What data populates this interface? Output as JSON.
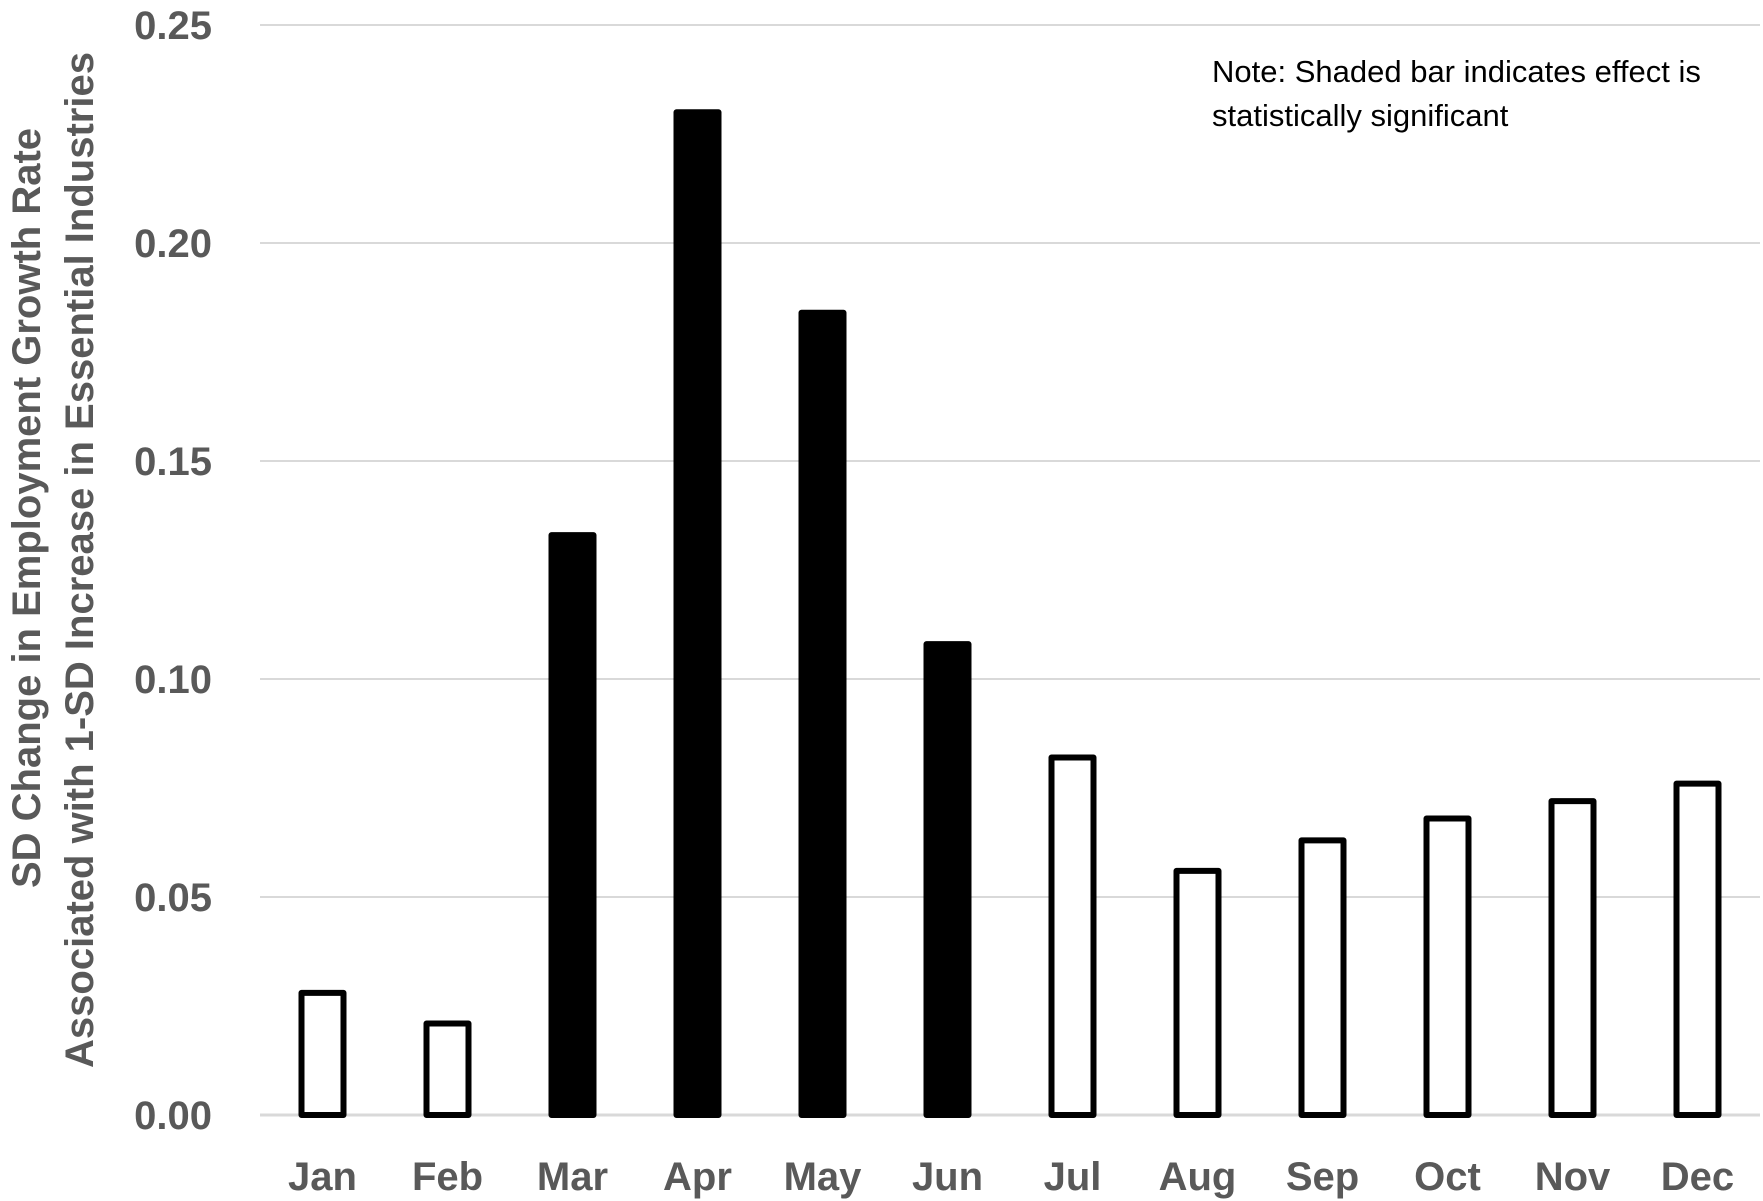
{
  "chart_data": {
    "type": "bar",
    "title": "",
    "xlabel": "",
    "ylabel_lines": [
      "SD Change in Employment Growth Rate",
      "Associated with 1-SD Increase in Essential Industries"
    ],
    "categories": [
      "Jan",
      "Feb",
      "Mar",
      "Apr",
      "May",
      "Jun",
      "Jul",
      "Aug",
      "Sep",
      "Oct",
      "Nov",
      "Dec"
    ],
    "values": [
      0.028,
      0.021,
      0.133,
      0.23,
      0.184,
      0.108,
      0.082,
      0.056,
      0.063,
      0.068,
      0.072,
      0.076
    ],
    "significant": [
      false,
      false,
      true,
      true,
      true,
      true,
      false,
      false,
      false,
      false,
      false,
      false
    ],
    "ylim": [
      0,
      0.25
    ],
    "yticks": [
      "0.00",
      "0.05",
      "0.10",
      "0.15",
      "0.20",
      "0.25"
    ],
    "ytick_values": [
      0,
      0.05,
      0.1,
      0.15,
      0.2,
      0.25
    ],
    "grid": true,
    "annotation_lines": [
      "Note: Shaded bar indicates effect is",
      "statistically significant"
    ],
    "colors": {
      "significant_fill": "#000000",
      "nonsignificant_fill": "#ffffff",
      "bar_outline": "#000000",
      "gridline": "#d9d9d9",
      "tick_text": "#595959"
    }
  }
}
